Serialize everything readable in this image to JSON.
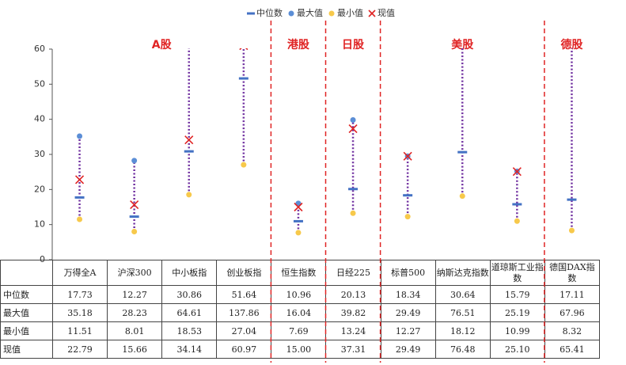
{
  "chart_data": {
    "type": "range",
    "categories": [
      "万得全A",
      "沪深300",
      "中小板指",
      "创业板指",
      "恒生指数",
      "日经225",
      "标普500",
      "纳斯达克指数",
      "道琼斯工业指数",
      "德国DAX指数"
    ],
    "groups": [
      {
        "name": "A股",
        "count": 4
      },
      {
        "name": "港股",
        "count": 1
      },
      {
        "name": "日股",
        "count": 1
      },
      {
        "name": "美股",
        "count": 3
      },
      {
        "name": "德股",
        "count": 1
      }
    ],
    "series": [
      {
        "name": "中位数",
        "role": "median",
        "color": "#4472c4",
        "values": [
          17.73,
          12.27,
          30.86,
          51.64,
          10.96,
          20.13,
          18.34,
          30.64,
          15.79,
          17.11
        ],
        "value_labels": [
          "17.73",
          "12.27",
          "30.86",
          "51.64",
          "10.96",
          "20.13",
          "18.34",
          "30.64",
          "15.79",
          "17.11"
        ]
      },
      {
        "name": "最大值",
        "role": "max",
        "color": "#5b8ed6",
        "values": [
          35.18,
          28.23,
          64.61,
          137.86,
          16.04,
          39.82,
          29.49,
          76.51,
          25.19,
          67.96
        ],
        "value_labels": [
          "35.18",
          "28.23",
          "64.61",
          "137.86",
          "16.04",
          "39.82",
          "29.49",
          "76.51",
          "25.19",
          "67.96"
        ]
      },
      {
        "name": "最小值",
        "role": "min",
        "color": "#f7c94b",
        "values": [
          11.51,
          8.01,
          18.53,
          27.04,
          7.69,
          13.24,
          12.27,
          18.12,
          10.99,
          8.32
        ],
        "value_labels": [
          "11.51",
          "8.01",
          "18.53",
          "27.04",
          "7.69",
          "13.24",
          "12.27",
          "18.12",
          "10.99",
          "8.32"
        ]
      },
      {
        "name": "现值",
        "role": "current",
        "color": "#e02424",
        "values": [
          22.79,
          15.66,
          34.14,
          60.97,
          15.0,
          37.31,
          29.49,
          76.48,
          25.1,
          65.41
        ],
        "value_labels": [
          "22.79",
          "15.66",
          "34.14",
          "60.97",
          "15.00",
          "37.31",
          "29.49",
          "76.48",
          "25.10",
          "65.41"
        ]
      }
    ],
    "range_color": "#7030a0",
    "group_color": "#e02424",
    "ylim": [
      0,
      60
    ],
    "yticks": [
      0,
      10,
      20,
      30,
      40,
      50,
      60
    ]
  }
}
